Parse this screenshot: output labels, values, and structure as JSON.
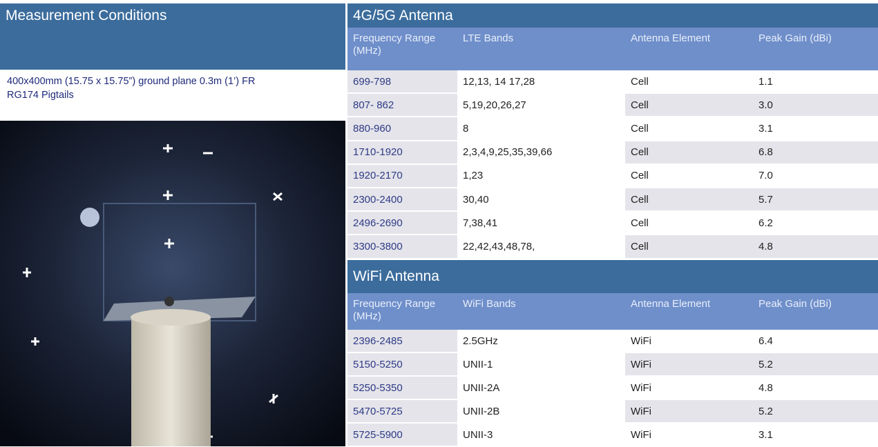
{
  "left": {
    "title": "Measurement Conditions",
    "conditions": [
      "400x400mm (15.75 x 15.75”) ground plane 0.3m (1’) FR",
      "RG174 Pigtails"
    ]
  },
  "sections": [
    {
      "title": "4G/5G Antenna",
      "headers": [
        "Frequency Range (MHz)",
        "LTE Bands",
        "Antenna Element",
        "Peak Gain (dBi)"
      ],
      "rows": [
        [
          "699-798",
          "12,13, 14 17,28",
          "Cell",
          "1.1"
        ],
        [
          "807- 862",
          "5,19,20,26,27",
          "Cell",
          "3.0"
        ],
        [
          "880-960",
          "8",
          "Cell",
          "3.1"
        ],
        [
          "1710-1920",
          "2,3,4,9,25,35,39,66",
          "Cell",
          "6.8"
        ],
        [
          "1920-2170",
          "1,23",
          "Cell",
          "7.0"
        ],
        [
          "2300-2400",
          "30,40",
          "Cell",
          "5.7"
        ],
        [
          "2496-2690",
          "7,38,41",
          "Cell",
          "6.2"
        ],
        [
          "3300-3800",
          "22,42,43,48,78,",
          "Cell",
          "4.8"
        ]
      ]
    },
    {
      "title": "WiFi Antenna",
      "headers": [
        "Frequency Range (MHz)",
        "WiFi Bands",
        "Antenna Element",
        "Peak Gain (dBi)"
      ],
      "rows": [
        [
          "2396-2485",
          "2.5GHz",
          "WiFi",
          "6.4"
        ],
        [
          "5150-5250",
          "UNII-1",
          "WiFi",
          "5.2"
        ],
        [
          "5250-5350",
          "UNII-2A",
          "WiFi",
          "4.8"
        ],
        [
          "5470-5725",
          "UNII-2B",
          "WiFi",
          "5.2"
        ],
        [
          "5725-5900",
          "UNII-3",
          "WiFi",
          "3.1"
        ]
      ]
    }
  ]
}
